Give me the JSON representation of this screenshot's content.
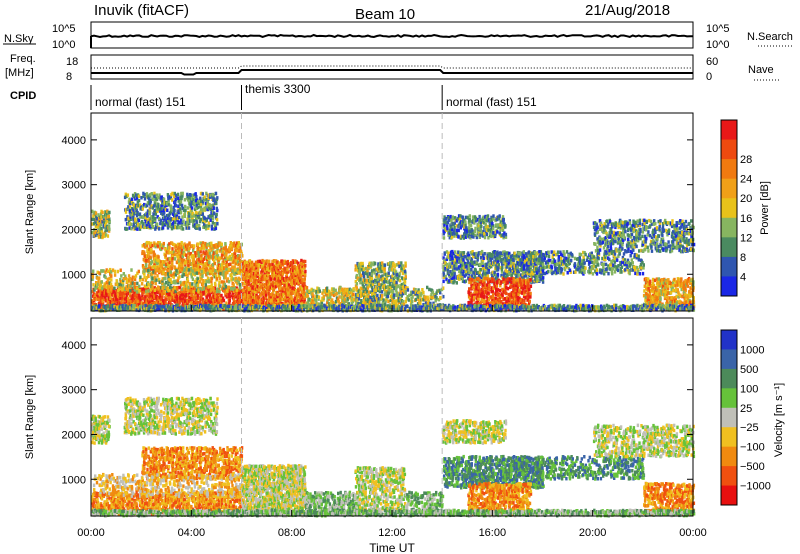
{
  "header": {
    "title": "Inuvik (fitACF)",
    "beam": "Beam 10",
    "date": "21/Aug/2018"
  },
  "panels": {
    "nsky": {
      "label": "N.Sky",
      "right_label": "N.Search",
      "ticks": [
        "10^5",
        "10^0"
      ]
    },
    "freq": {
      "label_line1": "Freq.",
      "label_line2": "[MHz]",
      "ticks": [
        "18",
        "8"
      ],
      "right_label": "Nave",
      "right_ticks": [
        "60",
        "0"
      ]
    },
    "cpid": {
      "label": "CPID",
      "segments": [
        "normal (fast) 151",
        "themis 3300",
        "normal (fast) 151"
      ]
    }
  },
  "chart_data": [
    {
      "type": "heatmap",
      "ylabel": "Slant Range [km]",
      "ylim": [
        180,
        4600
      ],
      "yticks": [
        1000,
        2000,
        3000,
        4000
      ],
      "colorbar": {
        "label": "Power [dB]",
        "ticks": [
          "4",
          "8",
          "12",
          "16",
          "20",
          "24",
          "28"
        ],
        "colors": [
          "#1a27e6",
          "#2f56b0",
          "#4a8a60",
          "#87b560",
          "#e8c21a",
          "#f0a018",
          "#f07a10",
          "#ee4a10",
          "#e81818"
        ]
      }
    },
    {
      "type": "heatmap",
      "ylabel": "Slant Range [km]",
      "ylim": [
        180,
        4600
      ],
      "yticks": [
        1000,
        2000,
        3000,
        4000
      ],
      "colorbar": {
        "label": "Velocity [m s⁻¹]",
        "ticks": [
          "1000",
          "500",
          "100",
          "25",
          "−25",
          "−100",
          "−500",
          "−1000"
        ],
        "colors": [
          "#2132c8",
          "#3a64a8",
          "#4c8a5a",
          "#66c23a",
          "#c0c0b8",
          "#f0c020",
          "#f08a10",
          "#f05010",
          "#e81010"
        ]
      }
    }
  ],
  "xaxis": {
    "label": "Time UT",
    "ticks": [
      "00:00",
      "04:00",
      "08:00",
      "12:00",
      "16:00",
      "20:00",
      "00:00"
    ],
    "range_hours": [
      0,
      24
    ]
  },
  "mode_changes_hours": [
    6,
    14
  ],
  "colors": {
    "frame": "#000000",
    "dashed": "#bbbbbb",
    "background": "#ffffff"
  }
}
